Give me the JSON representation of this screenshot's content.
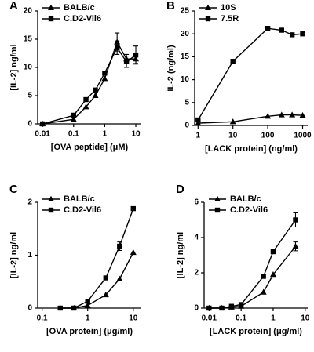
{
  "chart_data": [
    {
      "panel": "A",
      "type": "line",
      "log_x": true,
      "legend": "top-left",
      "xlabel": "[OVA peptide] (μM)",
      "ylabel": "[IL-2] ng/ml",
      "x": [
        0.01,
        0.1,
        0.25,
        0.5,
        1,
        2.5,
        5,
        10
      ],
      "xlim": [
        0.007,
        15
      ],
      "ylim": [
        0,
        20
      ],
      "xticks": [
        0.01,
        0.1,
        1,
        10
      ],
      "yticks": [
        0,
        5,
        10,
        15,
        20
      ],
      "series": [
        {
          "name": "BALB/c",
          "marker": "triangle",
          "color": "#000000",
          "values": [
            0,
            0.8,
            3,
            5,
            8,
            14.5,
            11.5,
            11.5
          ],
          "errors": [
            null,
            null,
            null,
            null,
            null,
            1.6,
            0.8,
            0.8
          ]
        },
        {
          "name": "C.D2-Vil6",
          "marker": "square",
          "color": "#000000",
          "values": [
            0,
            1.5,
            4.3,
            6,
            9,
            13.5,
            11,
            12.2
          ],
          "errors": [
            null,
            0.4,
            null,
            null,
            null,
            1.2,
            1,
            1.6
          ]
        }
      ]
    },
    {
      "panel": "B",
      "type": "line",
      "log_x": true,
      "legend": "top-left",
      "xlabel": "[LACK protein] (ng/ml)",
      "ylabel": "IL-2 (ng/ml)",
      "x": [
        1,
        10,
        100,
        250,
        500,
        1000
      ],
      "xlim": [
        0.8,
        1400
      ],
      "ylim": [
        0,
        25
      ],
      "xticks": [
        1,
        10,
        100,
        1000
      ],
      "yticks": [
        0,
        5,
        10,
        15,
        20,
        25
      ],
      "series": [
        {
          "name": "10S",
          "marker": "triangle",
          "color": "#000000",
          "values": [
            0.5,
            0.8,
            2,
            2.3,
            2.3,
            2.2
          ],
          "errors": [
            null,
            null,
            null,
            null,
            null,
            null
          ]
        },
        {
          "name": "7.5R",
          "marker": "square",
          "color": "#000000",
          "values": [
            1.2,
            14,
            21.2,
            20.8,
            19.8,
            20
          ],
          "errors": [
            null,
            null,
            null,
            null,
            null,
            null
          ]
        }
      ]
    },
    {
      "panel": "C",
      "type": "line",
      "log_x": true,
      "legend": "top-left",
      "xlabel": "[OVA protein] (μg/ml)",
      "ylabel": "[IL-2] ng/ml",
      "x": [
        0.25,
        0.5,
        1,
        2.5,
        5,
        10
      ],
      "xlim": [
        0.08,
        15
      ],
      "ylim": [
        0,
        2
      ],
      "xticks": [
        0.1,
        1,
        10
      ],
      "yticks": [
        0,
        1,
        2
      ],
      "series": [
        {
          "name": "BALB/c",
          "marker": "triangle",
          "color": "#000000",
          "values": [
            0,
            0,
            0.05,
            0.25,
            0.55,
            1.05
          ],
          "errors": [
            null,
            null,
            null,
            null,
            null,
            null
          ]
        },
        {
          "name": "C.D2-Vil6",
          "marker": "square",
          "color": "#000000",
          "values": [
            0,
            0,
            0.13,
            0.57,
            1.17,
            1.88
          ],
          "errors": [
            null,
            null,
            null,
            null,
            0.08,
            null
          ]
        }
      ]
    },
    {
      "panel": "D",
      "type": "line",
      "log_x": true,
      "legend": "top-left",
      "xlabel": "[LACK protein] (μg/ml)",
      "ylabel": "[IL-2] ng/ml",
      "x": [
        0.01,
        0.025,
        0.05,
        0.1,
        0.5,
        1,
        5
      ],
      "xlim": [
        0.007,
        12
      ],
      "ylim": [
        0,
        6
      ],
      "xticks": [
        0.01,
        0.1,
        1,
        10
      ],
      "yticks": [
        0,
        2,
        4,
        6
      ],
      "series": [
        {
          "name": "BALB/c",
          "marker": "triangle",
          "color": "#000000",
          "values": [
            0,
            0,
            0.05,
            0.1,
            0.9,
            1.9,
            3.5
          ],
          "errors": [
            null,
            null,
            null,
            null,
            null,
            null,
            0.25
          ]
        },
        {
          "name": "C.D2-Vil6",
          "marker": "square",
          "color": "#000000",
          "values": [
            0,
            0,
            0.1,
            0.2,
            1.8,
            3.2,
            5.0
          ],
          "errors": [
            null,
            null,
            null,
            null,
            0.1,
            null,
            0.4
          ]
        }
      ]
    }
  ]
}
